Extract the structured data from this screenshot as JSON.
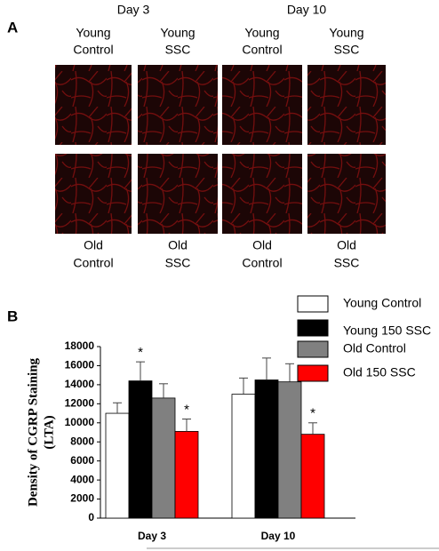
{
  "panel_a": {
    "label": "A",
    "day_headers": [
      "Day 3",
      "Day 10"
    ],
    "top_labels": [
      [
        "Young",
        "Control"
      ],
      [
        "Young",
        "SSC"
      ],
      [
        "Young",
        "Control"
      ],
      [
        "Young",
        "SSC"
      ]
    ],
    "bottom_labels": [
      [
        "Old",
        "Control"
      ],
      [
        "Old",
        "SSC"
      ],
      [
        "Old",
        "Control"
      ],
      [
        "Old",
        "SSC"
      ]
    ]
  },
  "chart_data": {
    "type": "bar",
    "panel_label": "B",
    "ylabel": [
      "Density of CGRP Staining",
      "(LTA)"
    ],
    "categories": [
      "Day 3",
      "Day 10"
    ],
    "ylim": [
      0,
      18000
    ],
    "yticks": [
      0,
      2000,
      4000,
      6000,
      8000,
      10000,
      12000,
      14000,
      16000,
      18000
    ],
    "significance_marker": "*",
    "series": [
      {
        "name": "Young Control",
        "color": "#ffffff",
        "values": [
          11000,
          13000
        ],
        "errors": [
          1100,
          1700
        ],
        "significant": [
          false,
          false
        ]
      },
      {
        "name": "Young 150 SSC",
        "color": "#000000",
        "values": [
          14400,
          14500
        ],
        "errors": [
          2000,
          2300
        ],
        "significant": [
          true,
          false
        ]
      },
      {
        "name": "Old Control",
        "color": "#808080",
        "values": [
          12600,
          14300
        ],
        "errors": [
          1500,
          1900
        ],
        "significant": [
          false,
          false
        ]
      },
      {
        "name": "Old 150 SSC",
        "color": "#ff0000",
        "values": [
          9100,
          8800
        ],
        "errors": [
          1300,
          1200
        ],
        "significant": [
          true,
          true
        ]
      }
    ]
  }
}
